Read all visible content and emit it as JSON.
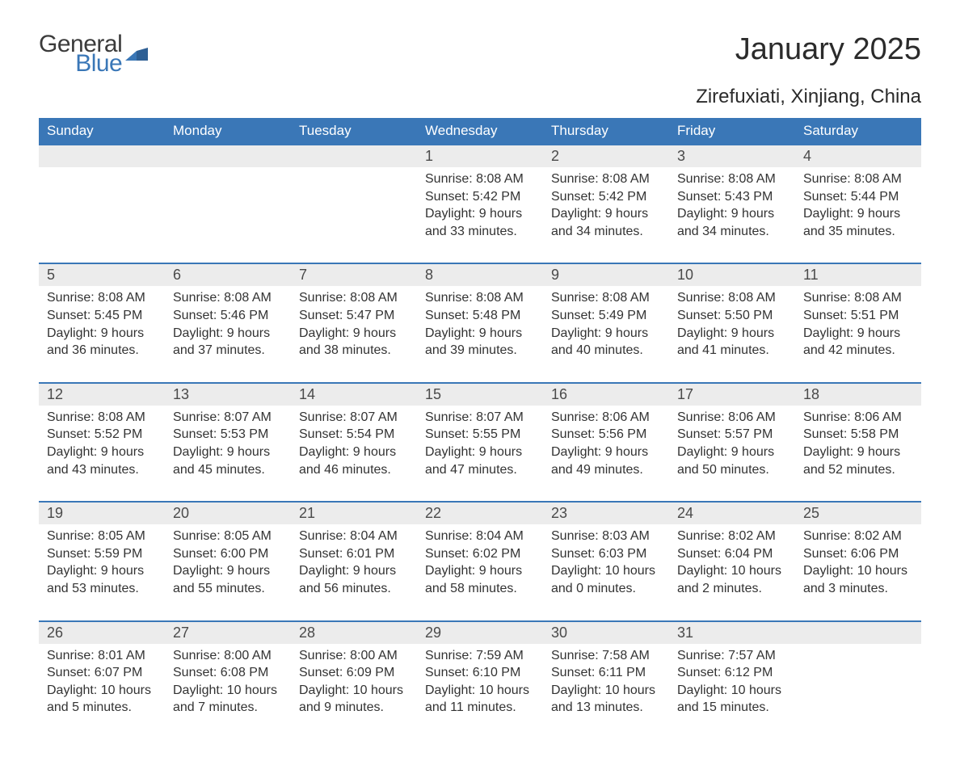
{
  "logo": {
    "line1": "General",
    "line2": "Blue"
  },
  "title": "January 2025",
  "location": "Zirefuxiati, Xinjiang, China",
  "colors": {
    "header_bg": "#3a77b7",
    "header_text": "#ffffff",
    "daynum_bg": "#ececec",
    "daynum_text": "#4a4a4a",
    "body_text": "#333333",
    "row_divider": "#3a77b7",
    "page_bg": "#ffffff",
    "logo_gray": "#3b3b3b",
    "logo_blue": "#3a77b7"
  },
  "typography": {
    "title_fontsize": 38,
    "location_fontsize": 24,
    "header_fontsize": 17,
    "daynum_fontsize": 18,
    "body_fontsize": 16,
    "font_family": "Arial"
  },
  "weekdays": [
    "Sunday",
    "Monday",
    "Tuesday",
    "Wednesday",
    "Thursday",
    "Friday",
    "Saturday"
  ],
  "weeks": [
    [
      null,
      null,
      null,
      {
        "n": "1",
        "sunrise": "Sunrise: 8:08 AM",
        "sunset": "Sunset: 5:42 PM",
        "day1": "Daylight: 9 hours",
        "day2": "and 33 minutes."
      },
      {
        "n": "2",
        "sunrise": "Sunrise: 8:08 AM",
        "sunset": "Sunset: 5:42 PM",
        "day1": "Daylight: 9 hours",
        "day2": "and 34 minutes."
      },
      {
        "n": "3",
        "sunrise": "Sunrise: 8:08 AM",
        "sunset": "Sunset: 5:43 PM",
        "day1": "Daylight: 9 hours",
        "day2": "and 34 minutes."
      },
      {
        "n": "4",
        "sunrise": "Sunrise: 8:08 AM",
        "sunset": "Sunset: 5:44 PM",
        "day1": "Daylight: 9 hours",
        "day2": "and 35 minutes."
      }
    ],
    [
      {
        "n": "5",
        "sunrise": "Sunrise: 8:08 AM",
        "sunset": "Sunset: 5:45 PM",
        "day1": "Daylight: 9 hours",
        "day2": "and 36 minutes."
      },
      {
        "n": "6",
        "sunrise": "Sunrise: 8:08 AM",
        "sunset": "Sunset: 5:46 PM",
        "day1": "Daylight: 9 hours",
        "day2": "and 37 minutes."
      },
      {
        "n": "7",
        "sunrise": "Sunrise: 8:08 AM",
        "sunset": "Sunset: 5:47 PM",
        "day1": "Daylight: 9 hours",
        "day2": "and 38 minutes."
      },
      {
        "n": "8",
        "sunrise": "Sunrise: 8:08 AM",
        "sunset": "Sunset: 5:48 PM",
        "day1": "Daylight: 9 hours",
        "day2": "and 39 minutes."
      },
      {
        "n": "9",
        "sunrise": "Sunrise: 8:08 AM",
        "sunset": "Sunset: 5:49 PM",
        "day1": "Daylight: 9 hours",
        "day2": "and 40 minutes."
      },
      {
        "n": "10",
        "sunrise": "Sunrise: 8:08 AM",
        "sunset": "Sunset: 5:50 PM",
        "day1": "Daylight: 9 hours",
        "day2": "and 41 minutes."
      },
      {
        "n": "11",
        "sunrise": "Sunrise: 8:08 AM",
        "sunset": "Sunset: 5:51 PM",
        "day1": "Daylight: 9 hours",
        "day2": "and 42 minutes."
      }
    ],
    [
      {
        "n": "12",
        "sunrise": "Sunrise: 8:08 AM",
        "sunset": "Sunset: 5:52 PM",
        "day1": "Daylight: 9 hours",
        "day2": "and 43 minutes."
      },
      {
        "n": "13",
        "sunrise": "Sunrise: 8:07 AM",
        "sunset": "Sunset: 5:53 PM",
        "day1": "Daylight: 9 hours",
        "day2": "and 45 minutes."
      },
      {
        "n": "14",
        "sunrise": "Sunrise: 8:07 AM",
        "sunset": "Sunset: 5:54 PM",
        "day1": "Daylight: 9 hours",
        "day2": "and 46 minutes."
      },
      {
        "n": "15",
        "sunrise": "Sunrise: 8:07 AM",
        "sunset": "Sunset: 5:55 PM",
        "day1": "Daylight: 9 hours",
        "day2": "and 47 minutes."
      },
      {
        "n": "16",
        "sunrise": "Sunrise: 8:06 AM",
        "sunset": "Sunset: 5:56 PM",
        "day1": "Daylight: 9 hours",
        "day2": "and 49 minutes."
      },
      {
        "n": "17",
        "sunrise": "Sunrise: 8:06 AM",
        "sunset": "Sunset: 5:57 PM",
        "day1": "Daylight: 9 hours",
        "day2": "and 50 minutes."
      },
      {
        "n": "18",
        "sunrise": "Sunrise: 8:06 AM",
        "sunset": "Sunset: 5:58 PM",
        "day1": "Daylight: 9 hours",
        "day2": "and 52 minutes."
      }
    ],
    [
      {
        "n": "19",
        "sunrise": "Sunrise: 8:05 AM",
        "sunset": "Sunset: 5:59 PM",
        "day1": "Daylight: 9 hours",
        "day2": "and 53 minutes."
      },
      {
        "n": "20",
        "sunrise": "Sunrise: 8:05 AM",
        "sunset": "Sunset: 6:00 PM",
        "day1": "Daylight: 9 hours",
        "day2": "and 55 minutes."
      },
      {
        "n": "21",
        "sunrise": "Sunrise: 8:04 AM",
        "sunset": "Sunset: 6:01 PM",
        "day1": "Daylight: 9 hours",
        "day2": "and 56 minutes."
      },
      {
        "n": "22",
        "sunrise": "Sunrise: 8:04 AM",
        "sunset": "Sunset: 6:02 PM",
        "day1": "Daylight: 9 hours",
        "day2": "and 58 minutes."
      },
      {
        "n": "23",
        "sunrise": "Sunrise: 8:03 AM",
        "sunset": "Sunset: 6:03 PM",
        "day1": "Daylight: 10 hours",
        "day2": "and 0 minutes."
      },
      {
        "n": "24",
        "sunrise": "Sunrise: 8:02 AM",
        "sunset": "Sunset: 6:04 PM",
        "day1": "Daylight: 10 hours",
        "day2": "and 2 minutes."
      },
      {
        "n": "25",
        "sunrise": "Sunrise: 8:02 AM",
        "sunset": "Sunset: 6:06 PM",
        "day1": "Daylight: 10 hours",
        "day2": "and 3 minutes."
      }
    ],
    [
      {
        "n": "26",
        "sunrise": "Sunrise: 8:01 AM",
        "sunset": "Sunset: 6:07 PM",
        "day1": "Daylight: 10 hours",
        "day2": "and 5 minutes."
      },
      {
        "n": "27",
        "sunrise": "Sunrise: 8:00 AM",
        "sunset": "Sunset: 6:08 PM",
        "day1": "Daylight: 10 hours",
        "day2": "and 7 minutes."
      },
      {
        "n": "28",
        "sunrise": "Sunrise: 8:00 AM",
        "sunset": "Sunset: 6:09 PM",
        "day1": "Daylight: 10 hours",
        "day2": "and 9 minutes."
      },
      {
        "n": "29",
        "sunrise": "Sunrise: 7:59 AM",
        "sunset": "Sunset: 6:10 PM",
        "day1": "Daylight: 10 hours",
        "day2": "and 11 minutes."
      },
      {
        "n": "30",
        "sunrise": "Sunrise: 7:58 AM",
        "sunset": "Sunset: 6:11 PM",
        "day1": "Daylight: 10 hours",
        "day2": "and 13 minutes."
      },
      {
        "n": "31",
        "sunrise": "Sunrise: 7:57 AM",
        "sunset": "Sunset: 6:12 PM",
        "day1": "Daylight: 10 hours",
        "day2": "and 15 minutes."
      },
      null
    ]
  ]
}
